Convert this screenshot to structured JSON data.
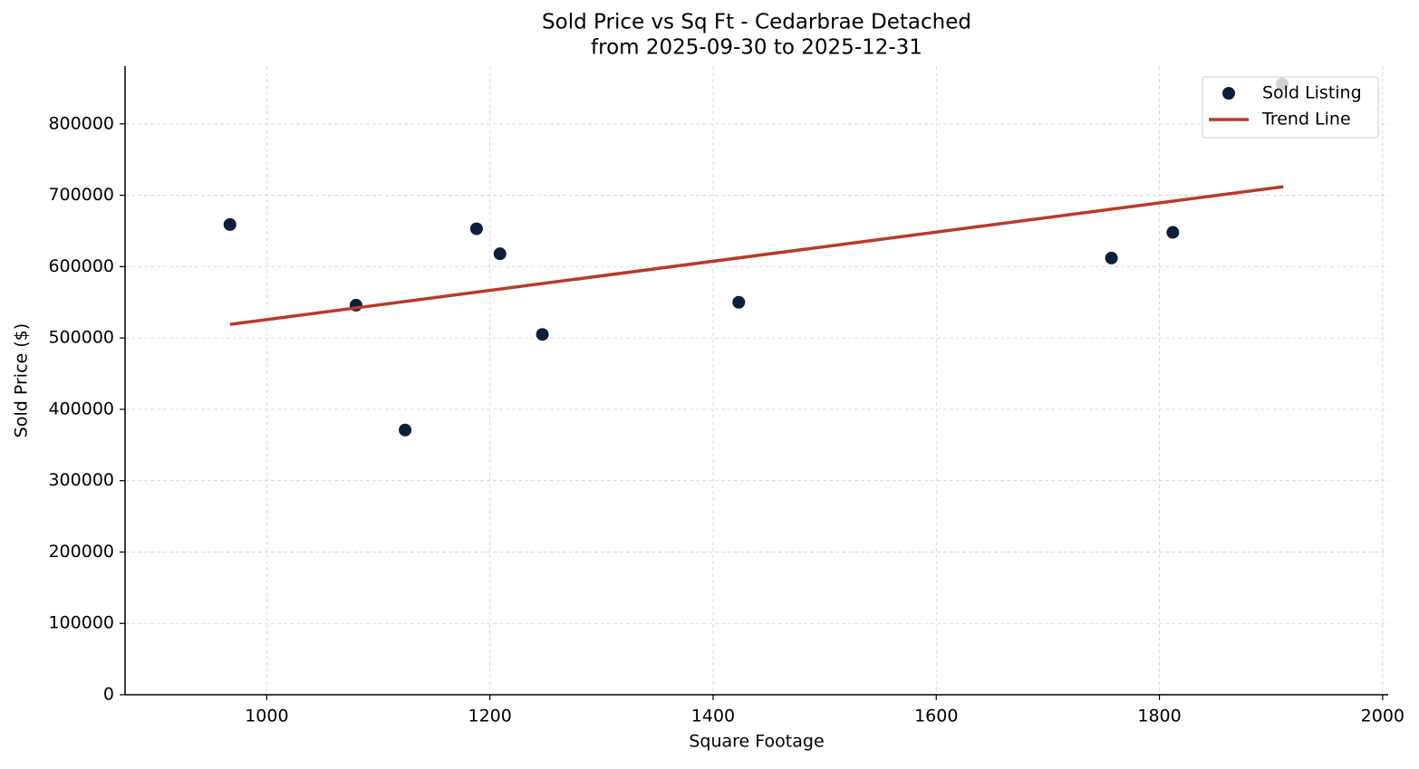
{
  "chart_data": {
    "type": "scatter",
    "title": "Sold Price vs Sq Ft - Cedarbrae Detached",
    "subtitle": "from 2025-09-30 to 2025-12-31",
    "x_label": "Square Footage",
    "y_label": "Sold Price ($)",
    "xlim": [
      873,
      2005
    ],
    "ylim": [
      0,
      881000
    ],
    "xticks": [
      1000,
      1200,
      1400,
      1600,
      1800,
      2000
    ],
    "yticks": [
      0,
      100000,
      200000,
      300000,
      400000,
      500000,
      600000,
      700000,
      800000
    ],
    "grid": true,
    "legend": "upper right",
    "series": [
      {
        "name": "Sold Listing",
        "type": "scatter",
        "color": "#0b1f3a",
        "x": [
          967,
          1080,
          1124,
          1188,
          1209,
          1247,
          1423,
          1757,
          1812,
          1910
        ],
        "values": [
          659000,
          546000,
          371000,
          653000,
          618000,
          505000,
          550000,
          612000,
          648000,
          856000
        ]
      },
      {
        "name": "Trend Line",
        "type": "line",
        "color": "#b83a2b",
        "x": [
          967,
          1911
        ],
        "values": [
          519000,
          712000
        ]
      }
    ]
  }
}
